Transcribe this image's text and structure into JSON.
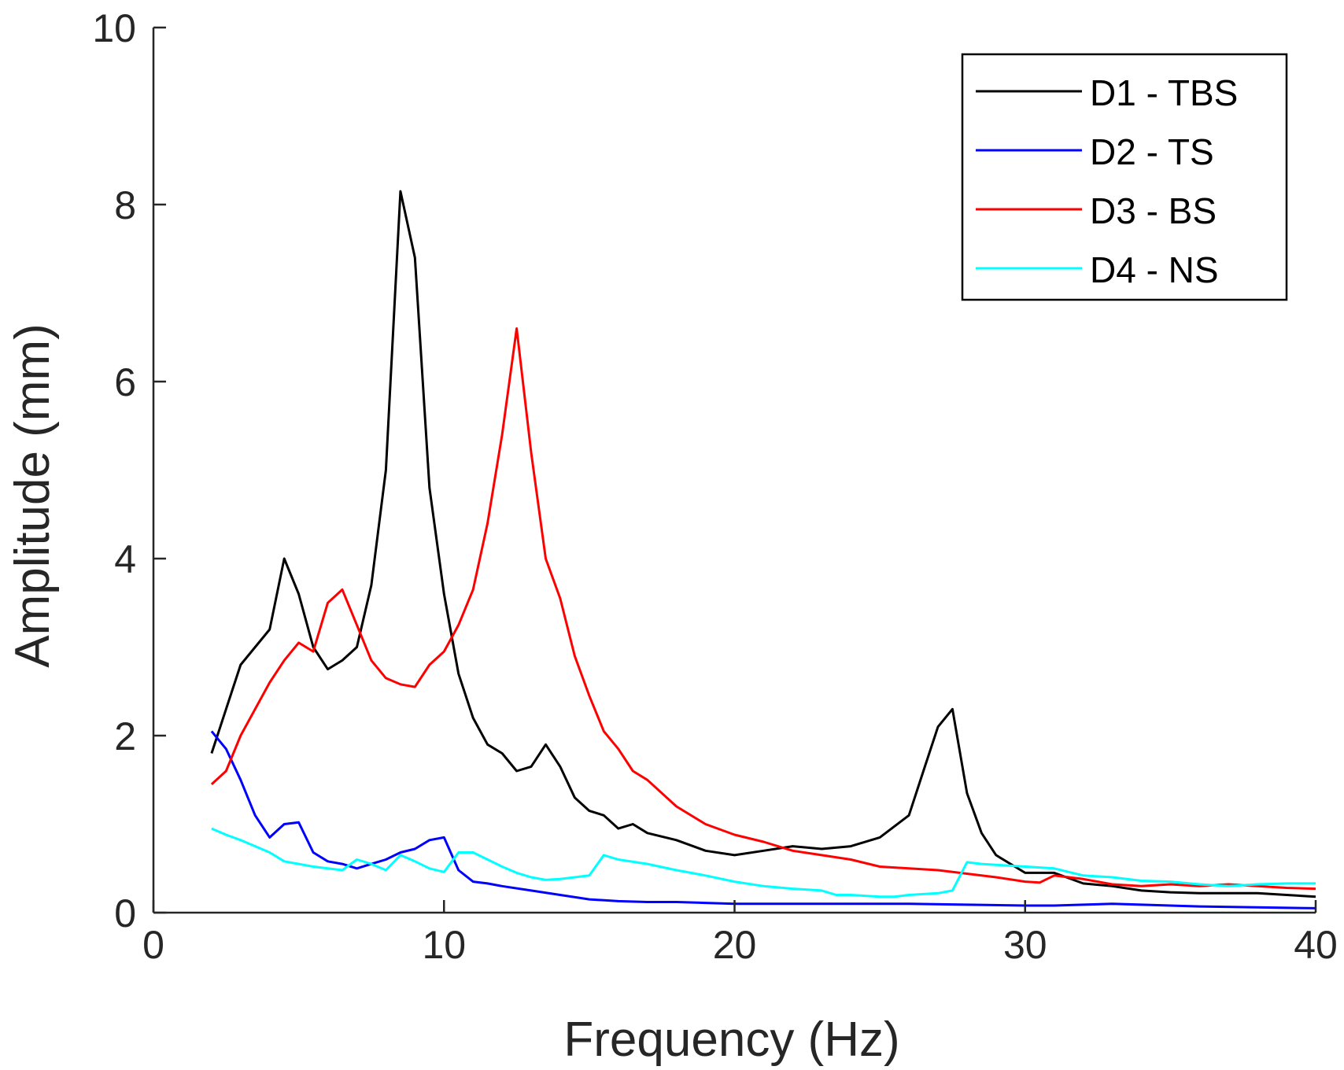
{
  "chart_data": {
    "type": "line",
    "title": "",
    "xlabel": "Frequency (Hz)",
    "ylabel": "Amplitude (mm)",
    "xlim": [
      0,
      40
    ],
    "ylim": [
      0,
      10
    ],
    "xticks": [
      0,
      10,
      20,
      30,
      40
    ],
    "yticks": [
      0,
      2,
      4,
      6,
      8,
      10
    ],
    "grid": false,
    "legend_position": "top-right",
    "series": [
      {
        "name": "D1 - TBS",
        "color": "#000000",
        "x": [
          2,
          2.5,
          3,
          4,
          4.5,
          5,
          5.5,
          6,
          6.5,
          7,
          7.5,
          8,
          8.5,
          9,
          9.5,
          10,
          10.5,
          11,
          11.5,
          12,
          12.5,
          13,
          13.5,
          14,
          14.5,
          15,
          15.5,
          16,
          16.5,
          17,
          18,
          19,
          20,
          21,
          22,
          23,
          24,
          25,
          26,
          26.5,
          27,
          27.5,
          28,
          28.5,
          29,
          30,
          31,
          32,
          33,
          34,
          35,
          36,
          37,
          38,
          39,
          40
        ],
        "y": [
          1.8,
          2.3,
          2.8,
          3.2,
          4.0,
          3.6,
          3.0,
          2.75,
          2.85,
          3.0,
          3.7,
          5.0,
          8.15,
          7.4,
          4.8,
          3.6,
          2.7,
          2.2,
          1.9,
          1.8,
          1.6,
          1.65,
          1.9,
          1.65,
          1.3,
          1.15,
          1.1,
          0.95,
          1.0,
          0.9,
          0.82,
          0.7,
          0.65,
          0.7,
          0.75,
          0.72,
          0.75,
          0.85,
          1.1,
          1.6,
          2.1,
          2.3,
          1.35,
          0.9,
          0.65,
          0.45,
          0.45,
          0.33,
          0.3,
          0.25,
          0.23,
          0.22,
          0.22,
          0.22,
          0.2,
          0.18
        ]
      },
      {
        "name": "D2 - TS",
        "color": "#0000ff",
        "x": [
          2,
          2.5,
          3,
          3.5,
          4,
          4.5,
          5,
          5.5,
          6,
          6.5,
          7,
          7.5,
          8,
          8.5,
          9,
          9.5,
          10,
          10.5,
          11,
          11.5,
          12,
          13,
          14,
          15,
          16,
          17,
          18,
          19,
          20,
          22,
          24,
          26,
          28,
          30,
          31,
          32,
          33,
          34,
          35,
          36,
          38,
          40
        ],
        "y": [
          2.05,
          1.85,
          1.5,
          1.1,
          0.85,
          1.0,
          1.02,
          0.68,
          0.58,
          0.55,
          0.5,
          0.55,
          0.6,
          0.68,
          0.72,
          0.82,
          0.85,
          0.48,
          0.35,
          0.33,
          0.3,
          0.25,
          0.2,
          0.15,
          0.13,
          0.12,
          0.12,
          0.11,
          0.1,
          0.1,
          0.1,
          0.1,
          0.09,
          0.08,
          0.08,
          0.09,
          0.1,
          0.09,
          0.08,
          0.07,
          0.06,
          0.05
        ]
      },
      {
        "name": "D3 - BS",
        "color": "#ff0000",
        "x": [
          2,
          2.5,
          3,
          3.5,
          4,
          4.5,
          5,
          5.5,
          6,
          6.5,
          7,
          7.5,
          8,
          8.5,
          9,
          9.5,
          10,
          10.5,
          11,
          11.5,
          12,
          12.5,
          13,
          13.5,
          14,
          14.5,
          15,
          15.5,
          16,
          16.5,
          17,
          18,
          19,
          20,
          21,
          22,
          23,
          24,
          25,
          26,
          27,
          28,
          29,
          30,
          30.5,
          31,
          32,
          33,
          34,
          35,
          36,
          37,
          38,
          39,
          40
        ],
        "y": [
          1.45,
          1.6,
          2.0,
          2.3,
          2.6,
          2.85,
          3.05,
          2.95,
          3.5,
          3.65,
          3.25,
          2.85,
          2.65,
          2.58,
          2.55,
          2.8,
          2.95,
          3.25,
          3.65,
          4.4,
          5.4,
          6.6,
          5.2,
          4.0,
          3.55,
          2.9,
          2.45,
          2.05,
          1.85,
          1.6,
          1.5,
          1.2,
          1.0,
          0.88,
          0.8,
          0.7,
          0.65,
          0.6,
          0.52,
          0.5,
          0.48,
          0.44,
          0.4,
          0.35,
          0.34,
          0.42,
          0.38,
          0.32,
          0.3,
          0.32,
          0.3,
          0.32,
          0.3,
          0.28,
          0.27
        ]
      },
      {
        "name": "D4 - NS",
        "color": "#00ffff",
        "x": [
          2,
          2.5,
          3,
          3.5,
          4,
          4.5,
          5,
          5.5,
          6,
          6.5,
          7,
          7.5,
          8,
          8.5,
          9,
          9.5,
          10,
          10.5,
          11,
          11.5,
          12,
          12.5,
          13,
          13.5,
          14,
          14.5,
          15,
          15.5,
          16,
          17,
          18,
          19,
          20,
          21,
          22,
          23,
          23.5,
          24,
          25,
          25.5,
          26,
          27,
          27.5,
          28,
          28.5,
          29,
          30,
          31,
          32,
          33,
          34,
          35,
          36,
          37,
          38,
          39,
          40
        ],
        "y": [
          0.95,
          0.88,
          0.82,
          0.75,
          0.68,
          0.58,
          0.55,
          0.52,
          0.5,
          0.48,
          0.6,
          0.55,
          0.48,
          0.65,
          0.58,
          0.5,
          0.46,
          0.68,
          0.68,
          0.6,
          0.52,
          0.45,
          0.4,
          0.37,
          0.38,
          0.4,
          0.42,
          0.65,
          0.6,
          0.55,
          0.48,
          0.42,
          0.35,
          0.3,
          0.27,
          0.25,
          0.2,
          0.2,
          0.18,
          0.18,
          0.2,
          0.22,
          0.25,
          0.57,
          0.55,
          0.54,
          0.52,
          0.5,
          0.42,
          0.4,
          0.36,
          0.35,
          0.32,
          0.3,
          0.32,
          0.33,
          0.33
        ]
      }
    ]
  }
}
